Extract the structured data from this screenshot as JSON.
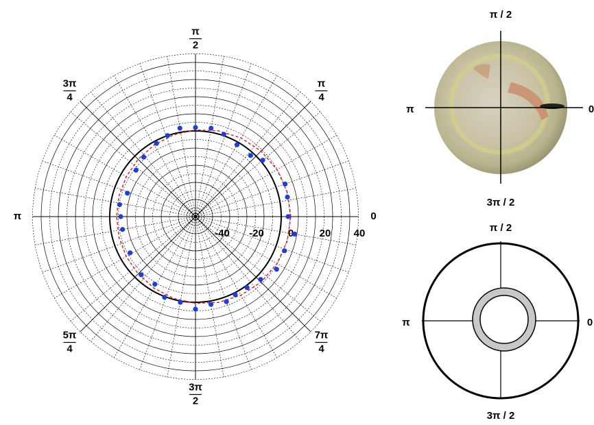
{
  "chart_data": {
    "type": "polar",
    "rlim": [
      -50,
      45
    ],
    "rticks": [
      -40,
      -20,
      0,
      20,
      40
    ],
    "rgrid": [
      -45,
      -40,
      -35,
      -30,
      -25,
      -20,
      -15,
      -10,
      -5,
      0,
      5,
      10,
      15,
      20,
      25,
      30,
      35,
      40,
      45
    ],
    "thetaticks": [
      {
        "value": 0,
        "label": "0"
      },
      {
        "value": 45,
        "label": "π/4"
      },
      {
        "value": 90,
        "label": "π/2"
      },
      {
        "value": 135,
        "label": "3π/4"
      },
      {
        "value": 180,
        "label": "π"
      },
      {
        "value": 225,
        "label": "5π/4"
      },
      {
        "value": 270,
        "label": "3π/2"
      },
      {
        "value": 315,
        "label": "7π/4"
      }
    ],
    "theta_grid": [
      0,
      10,
      20,
      30,
      40,
      50,
      60,
      70,
      80,
      90,
      100,
      110,
      120,
      130,
      140,
      150,
      160,
      170,
      180,
      190,
      200,
      210,
      220,
      230,
      240,
      250,
      260,
      270,
      280,
      290,
      300,
      310,
      320,
      330,
      340,
      350
    ],
    "reference_r": 0,
    "reference_color": "#000000",
    "series": [
      {
        "style": "dashed",
        "color": "#e02020",
        "theta": [
          0,
          15,
          30,
          45,
          60,
          75,
          90,
          105,
          120,
          135,
          150,
          165,
          180,
          195,
          210,
          225,
          240,
          255,
          270,
          285,
          300,
          315,
          330,
          345,
          360
        ],
        "values": [
          5.6,
          5.4,
          4.9,
          4.1,
          3.0,
          1.8,
          0.6,
          -0.6,
          -1.8,
          -2.7,
          -3.4,
          -3.8,
          -4,
          -3.8,
          -3.4,
          -2.7,
          -1.8,
          -0.6,
          0.6,
          1.8,
          3.0,
          4.1,
          4.9,
          5.4,
          5.6
        ]
      },
      {
        "style": "points",
        "color": "#1a3fe0",
        "theta": [
          0,
          12,
          20,
          40,
          48,
          60,
          71,
          80,
          90,
          100,
          109,
          118,
          131,
          142,
          161,
          171,
          180,
          190,
          209,
          227,
          239,
          249,
          260,
          270,
          280,
          290,
          297,
          306,
          316,
          327,
          339,
          350
        ],
        "values": [
          4,
          4.8,
          5.6,
          1.2,
          -2,
          -1.6,
          0.8,
          2.4,
          2,
          2.4,
          0,
          -1.6,
          -4,
          -6,
          -8,
          -5.2,
          -6.4,
          -6.8,
          -6.4,
          -3.6,
          -4,
          0.4,
          0.8,
          4,
          2,
          2.8,
          1.2,
          1.2,
          2.8,
          6.4,
          5.6,
          8.8
        ]
      }
    ]
  },
  "insets": [
    {
      "top": "π / 2",
      "left": "π",
      "right": "0",
      "bottom": "3π / 2"
    },
    {
      "top": "π / 2",
      "left": "π",
      "right": "0",
      "bottom": "3π / 2"
    }
  ]
}
